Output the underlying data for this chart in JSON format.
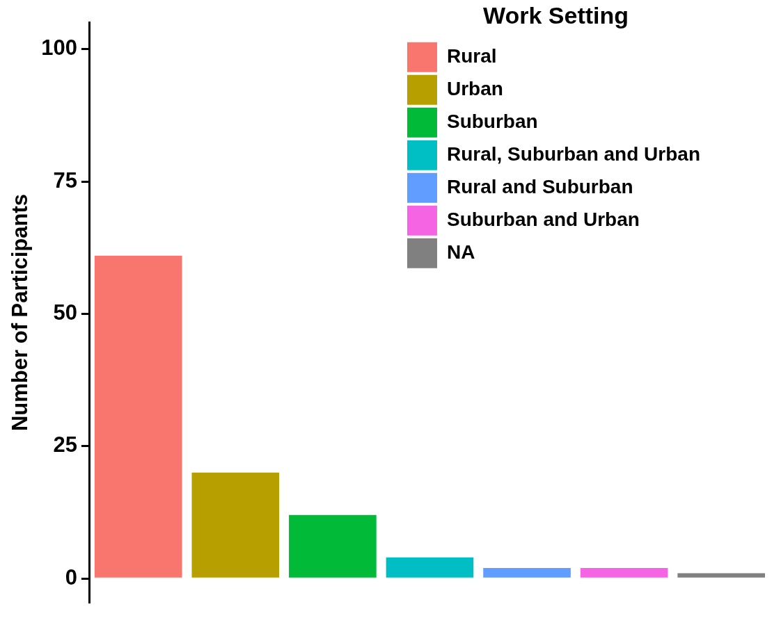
{
  "chart_data": {
    "type": "bar",
    "ylabel": "Number of Participants",
    "legend_title": "Work Setting",
    "legend": "top right",
    "grid": false,
    "tick_labels": "y",
    "stacked": true,
    "categories": [
      null,
      null,
      null,
      null,
      null,
      null,
      null
    ],
    "ylim": [
      -4.5,
      105
    ],
    "yticks": [
      0,
      25,
      50,
      75,
      100
    ],
    "series": [
      {
        "name": "Rural",
        "color": "#f8766d",
        "values": [
          61,
          null,
          null,
          null,
          null,
          null,
          null
        ]
      },
      {
        "name": "Urban",
        "color": "#b79f00",
        "values": [
          null,
          20,
          null,
          null,
          null,
          null,
          null
        ]
      },
      {
        "name": "Suburban",
        "color": "#00ba38",
        "values": [
          null,
          null,
          12,
          null,
          null,
          null,
          null
        ]
      },
      {
        "name": "Rural, Suburban and Urban",
        "color": "#00bfc4",
        "values": [
          null,
          null,
          null,
          4,
          null,
          null,
          null
        ]
      },
      {
        "name": "Rural and Suburban",
        "color": "#619cff",
        "values": [
          null,
          null,
          null,
          null,
          2,
          null,
          null
        ]
      },
      {
        "name": "Suburban and Urban",
        "color": "#f564e3",
        "values": [
          null,
          null,
          null,
          null,
          null,
          2,
          null
        ]
      },
      {
        "name": "NA",
        "color": "#808080",
        "values": [
          null,
          null,
          null,
          null,
          null,
          null,
          1
        ]
      }
    ]
  }
}
